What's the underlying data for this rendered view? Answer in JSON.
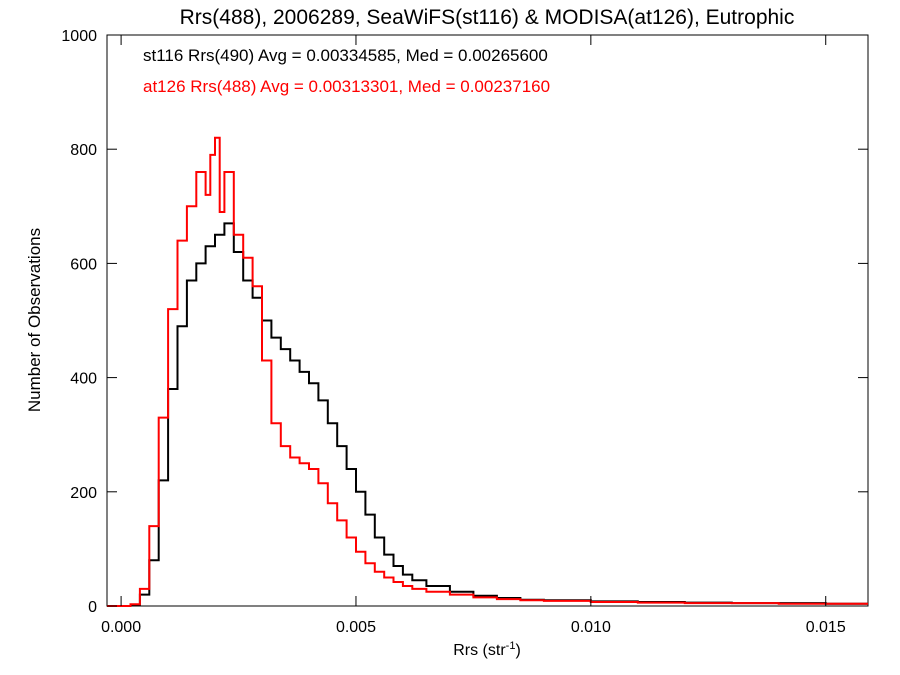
{
  "chart_data": {
    "type": "line",
    "title": "Rrs(488), 2006289, SeaWiFS(st116) & MODISA(at126), Eutrophic",
    "xlabel": "Rrs (str",
    "xlabel_sup": "-1",
    "xlabel_close": ")",
    "ylabel": "Number of Observations",
    "xlim": [
      -0.0003,
      0.0159
    ],
    "ylim": [
      0,
      1000
    ],
    "xticks": [
      0.0,
      0.005,
      0.01,
      0.015
    ],
    "xtick_labels": [
      "0.000",
      "0.005",
      "0.010",
      "0.015"
    ],
    "yticks": [
      0,
      200,
      400,
      600,
      800,
      1000
    ],
    "ytick_labels": [
      "0",
      "200",
      "400",
      "600",
      "800",
      "1000"
    ],
    "grid": false,
    "series": [
      {
        "name": "st116 Rrs(490) Avg = 0.00334585, Med = 0.00265600",
        "color": "#000000",
        "step": true,
        "x": [
          -0.0003,
          0.0002,
          0.0004,
          0.0006,
          0.0008,
          0.001,
          0.0012,
          0.0014,
          0.0016,
          0.0018,
          0.002,
          0.0022,
          0.0024,
          0.0026,
          0.0028,
          0.003,
          0.0032,
          0.0034,
          0.0036,
          0.0038,
          0.004,
          0.0042,
          0.0044,
          0.0046,
          0.0048,
          0.005,
          0.0052,
          0.0054,
          0.0056,
          0.0058,
          0.006,
          0.0062,
          0.0065,
          0.007,
          0.0075,
          0.008,
          0.0085,
          0.009,
          0.01,
          0.011,
          0.012,
          0.013,
          0.014,
          0.015,
          0.0159
        ],
        "y": [
          0,
          2,
          20,
          80,
          220,
          380,
          490,
          570,
          600,
          630,
          650,
          670,
          620,
          570,
          540,
          500,
          470,
          450,
          430,
          410,
          390,
          360,
          320,
          280,
          240,
          200,
          160,
          120,
          90,
          70,
          55,
          45,
          35,
          25,
          18,
          14,
          11,
          10,
          8,
          7,
          6,
          5,
          5,
          4,
          4
        ]
      },
      {
        "name": "at126 Rrs(488) Avg = 0.00313301, Med = 0.00237160",
        "color": "#ff0000",
        "step": true,
        "x": [
          -0.0003,
          0.0002,
          0.0004,
          0.0006,
          0.0008,
          0.001,
          0.0012,
          0.0014,
          0.0016,
          0.0018,
          0.0019,
          0.002,
          0.0021,
          0.0022,
          0.0024,
          0.0026,
          0.0028,
          0.003,
          0.0032,
          0.0034,
          0.0036,
          0.0038,
          0.004,
          0.0042,
          0.0044,
          0.0046,
          0.0048,
          0.005,
          0.0052,
          0.0054,
          0.0056,
          0.0058,
          0.006,
          0.0062,
          0.0065,
          0.007,
          0.0075,
          0.008,
          0.0085,
          0.009,
          0.01,
          0.011,
          0.012,
          0.013,
          0.014,
          0.015,
          0.0159
        ],
        "y": [
          0,
          3,
          30,
          140,
          330,
          520,
          640,
          700,
          760,
          720,
          790,
          820,
          690,
          760,
          650,
          610,
          560,
          430,
          320,
          280,
          260,
          250,
          240,
          215,
          180,
          150,
          120,
          95,
          75,
          60,
          50,
          42,
          35,
          30,
          25,
          20,
          15,
          12,
          10,
          9,
          7,
          6,
          5,
          5,
          4,
          4,
          4
        ]
      }
    ],
    "legend": {
      "placement": "top-left",
      "entries": [
        {
          "text": "st116 Rrs(490) Avg = 0.00334585, Med = 0.00265600",
          "color": "#000000"
        },
        {
          "text": "at126 Rrs(488) Avg = 0.00313301, Med = 0.00237160",
          "color": "#ff0000"
        }
      ]
    }
  }
}
